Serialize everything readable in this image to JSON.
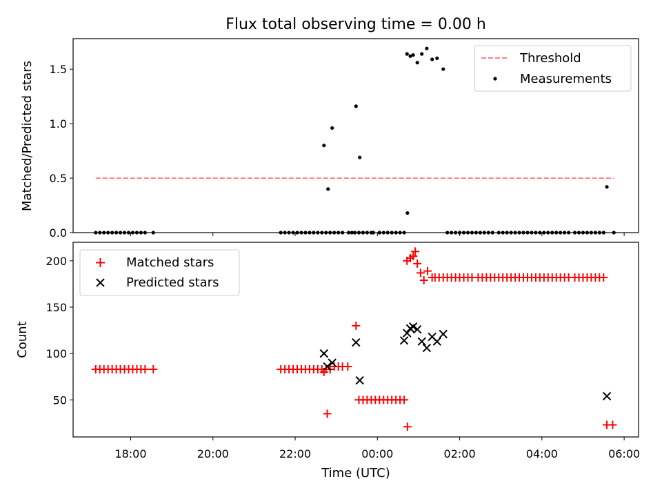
{
  "title": "Flux total observing time = 0.00 h",
  "chart_data": [
    {
      "type": "scatter",
      "ylabel": "Matched/Predicted stars",
      "ylim": [
        0,
        1.78
      ],
      "yticks": [
        0.0,
        0.5,
        1.0,
        1.5
      ],
      "ytick_labels": [
        "0.0",
        "0.5",
        "1.0",
        "1.5"
      ],
      "xlim_hours": [
        -7.4,
        6.35
      ],
      "legend_position": "top-right",
      "threshold": {
        "name": "Threshold",
        "value": 0.5,
        "x_range": [
          -6.85,
          5.75
        ],
        "color": "#ff7f7f"
      },
      "series": [
        {
          "name": "Measurements",
          "color": "#000000",
          "x": [
            -6.85,
            -6.75,
            -6.65,
            -6.55,
            -6.45,
            -6.35,
            -6.25,
            -6.15,
            -6.05,
            -5.95,
            -5.85,
            -5.75,
            -5.65,
            -5.45,
            -2.35,
            -2.25,
            -2.15,
            -2.05,
            -1.95,
            -1.85,
            -1.75,
            -1.65,
            -1.55,
            -1.45,
            -1.35,
            -1.25,
            -1.15,
            -1.05,
            -0.95,
            -0.85,
            -0.7,
            -0.62,
            -0.55,
            -0.45,
            -0.35,
            -0.25,
            -0.15,
            -0.45,
            -0.35,
            -0.1,
            0.05,
            0.15,
            0.25,
            0.35,
            0.45,
            0.55,
            -1.3,
            -1.2,
            -1.1,
            -0.52,
            -0.43,
            0.65,
            0.72,
            0.8,
            0.87,
            0.97,
            1.08,
            1.2,
            1.33,
            1.45,
            1.6,
            1.7,
            1.8,
            1.9,
            2.0,
            2.1,
            2.2,
            2.3,
            2.4,
            2.5,
            2.6,
            2.7,
            2.8,
            2.95,
            3.05,
            3.15,
            3.25,
            3.35,
            3.45,
            3.55,
            3.65,
            3.75,
            3.85,
            3.95,
            4.05,
            4.15,
            4.25,
            4.35,
            4.45,
            4.55,
            4.65,
            4.8,
            4.9,
            5.0,
            5.1,
            5.2,
            5.3,
            5.4,
            5.5,
            5.75,
            0.73,
            5.58
          ],
          "y": [
            0,
            0,
            0,
            0,
            0,
            0,
            0,
            0,
            0,
            0,
            0,
            0,
            0,
            0,
            0,
            0,
            0,
            0,
            0,
            0,
            0,
            0,
            0,
            0,
            0,
            0,
            0,
            0,
            0,
            0,
            0,
            0,
            0,
            0,
            0,
            0,
            0,
            0,
            0,
            0,
            0,
            0,
            0,
            0,
            0,
            0,
            0.8,
            0.4,
            0.96,
            1.16,
            0.69,
            0,
            1.64,
            1.62,
            1.63,
            1.56,
            1.64,
            1.69,
            1.59,
            1.6,
            1.5,
            0,
            0,
            0,
            0,
            0,
            0,
            0,
            0,
            0,
            0,
            0,
            0,
            0,
            0,
            0,
            0,
            0,
            0,
            0,
            0,
            0,
            0,
            0,
            0,
            0,
            0,
            0,
            0,
            0,
            0,
            0,
            0,
            0,
            0,
            0,
            0,
            0,
            0,
            0,
            0.18,
            0.42
          ]
        }
      ]
    },
    {
      "type": "scatter",
      "ylabel": "Count",
      "xlabel": "Time (UTC)",
      "ylim": [
        10,
        220
      ],
      "yticks": [
        50,
        100,
        150,
        200
      ],
      "ytick_labels": [
        "50",
        "100",
        "150",
        "200"
      ],
      "xlim_hours": [
        -7.4,
        6.35
      ],
      "xticks_hours": [
        -6,
        -4,
        -2,
        0,
        2,
        4,
        6
      ],
      "xtick_labels": [
        "18:00",
        "20:00",
        "22:00",
        "00:00",
        "02:00",
        "04:00",
        "06:00"
      ],
      "legend_position": "top-left",
      "series": [
        {
          "name": "Matched stars",
          "marker": "plus",
          "color": "#ff0000",
          "x": [
            -6.85,
            -6.75,
            -6.65,
            -6.55,
            -6.45,
            -6.35,
            -6.25,
            -6.15,
            -6.05,
            -5.95,
            -5.85,
            -5.75,
            -5.65,
            -5.45,
            -2.35,
            -2.25,
            -2.15,
            -2.05,
            -1.95,
            -1.85,
            -1.75,
            -1.65,
            -1.55,
            -1.45,
            -1.35,
            -1.25,
            -1.15,
            -1.05,
            -0.95,
            -0.85,
            -0.72,
            -1.3,
            -1.22,
            -0.52,
            -0.45,
            -0.35,
            -0.25,
            -0.15,
            -0.05,
            0.05,
            0.15,
            0.25,
            0.35,
            0.45,
            0.55,
            0.65,
            0.73,
            0.72,
            0.8,
            0.87,
            0.92,
            0.97,
            1.05,
            1.13,
            1.22,
            1.33,
            1.4,
            1.5,
            1.6,
            1.7,
            1.8,
            1.9,
            2.0,
            2.1,
            2.2,
            2.3,
            2.45,
            2.55,
            2.65,
            2.75,
            2.85,
            2.95,
            3.05,
            3.15,
            3.25,
            3.35,
            3.45,
            3.55,
            3.65,
            3.75,
            3.85,
            3.95,
            4.05,
            4.15,
            4.25,
            4.35,
            4.45,
            4.55,
            4.65,
            4.8,
            4.9,
            5.0,
            5.1,
            5.2,
            5.3,
            5.4,
            5.5,
            5.58,
            5.72
          ],
          "y": [
            83,
            83,
            83,
            83,
            83,
            83,
            83,
            83,
            83,
            83,
            83,
            83,
            83,
            83,
            83,
            83,
            83,
            83,
            83,
            83,
            83,
            83,
            83,
            83,
            83,
            83,
            83,
            86,
            86,
            86,
            86,
            80,
            35,
            130,
            50,
            50,
            50,
            50,
            50,
            50,
            50,
            50,
            50,
            50,
            50,
            50,
            21,
            200,
            203,
            205,
            210,
            197,
            187,
            179,
            189,
            182,
            182,
            182,
            182,
            182,
            182,
            182,
            182,
            182,
            182,
            182,
            182,
            182,
            182,
            182,
            182,
            182,
            182,
            182,
            182,
            182,
            182,
            182,
            182,
            182,
            182,
            182,
            182,
            182,
            182,
            182,
            182,
            182,
            182,
            182,
            182,
            182,
            182,
            182,
            182,
            182,
            182,
            23,
            23
          ]
        },
        {
          "name": "Predicted stars",
          "marker": "x",
          "color": "#000000",
          "x": [
            -1.3,
            -1.22,
            -1.1,
            -0.52,
            -0.43,
            0.65,
            0.72,
            0.8,
            0.87,
            0.97,
            1.08,
            1.2,
            1.33,
            1.45,
            1.6,
            5.58
          ],
          "y": [
            100,
            86,
            90,
            112,
            71,
            114,
            122,
            127,
            129,
            126,
            113,
            106,
            118,
            113,
            121,
            54
          ]
        }
      ]
    }
  ]
}
